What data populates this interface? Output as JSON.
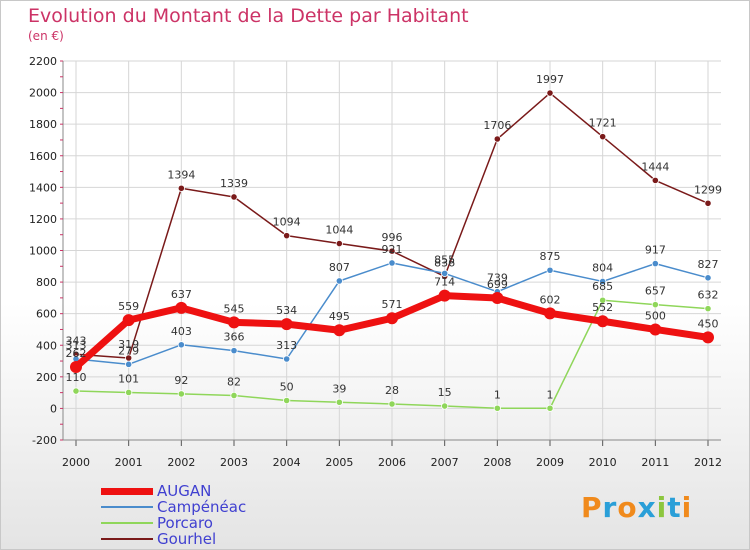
{
  "title": "Evolution du Montant de la Dette par Habitant",
  "unit_label": "(en €)",
  "logo_text": "Proxiti",
  "logo_colors": [
    "#f08a1c",
    "#2a9fd8",
    "#f08a1c",
    "#2a9fd8",
    "#8cc63e",
    "#2a9fd8",
    "#f08a1c"
  ],
  "chart_data": {
    "type": "line",
    "x": [
      "2000",
      "2001",
      "2002",
      "2003",
      "2004",
      "2005",
      "2006",
      "2007",
      "2008",
      "2009",
      "2010",
      "2011",
      "2012"
    ],
    "ylim": [
      -200,
      2200
    ],
    "yticks": [
      -200,
      0,
      200,
      400,
      600,
      800,
      1000,
      1200,
      1400,
      1600,
      1800,
      2000,
      2200
    ],
    "grid": true,
    "legend_position": "bottom-left",
    "series": [
      {
        "name": "Gourhel",
        "color": "#7a1a1a",
        "values": [
          343,
          319,
          1394,
          1339,
          1094,
          1044,
          996,
          836,
          1706,
          1997,
          1721,
          1444,
          1299
        ]
      },
      {
        "name": "Porcaro",
        "color": "#8fd65a",
        "values": [
          110,
          101,
          92,
          82,
          50,
          39,
          28,
          15,
          1,
          1,
          685,
          657,
          632
        ]
      },
      {
        "name": "Campénéac",
        "color": "#4a8ccc",
        "values": [
          313,
          279,
          403,
          366,
          313,
          807,
          921,
          855,
          739,
          875,
          804,
          917,
          827
        ]
      },
      {
        "name": "AUGAN",
        "color": "#ee1111",
        "values": [
          262,
          559,
          637,
          545,
          534,
          495,
          571,
          714,
          699,
          602,
          552,
          500,
          450
        ]
      }
    ],
    "legend_order": [
      "AUGAN",
      "Campénéac",
      "Porcaro",
      "Gourhel"
    ]
  }
}
